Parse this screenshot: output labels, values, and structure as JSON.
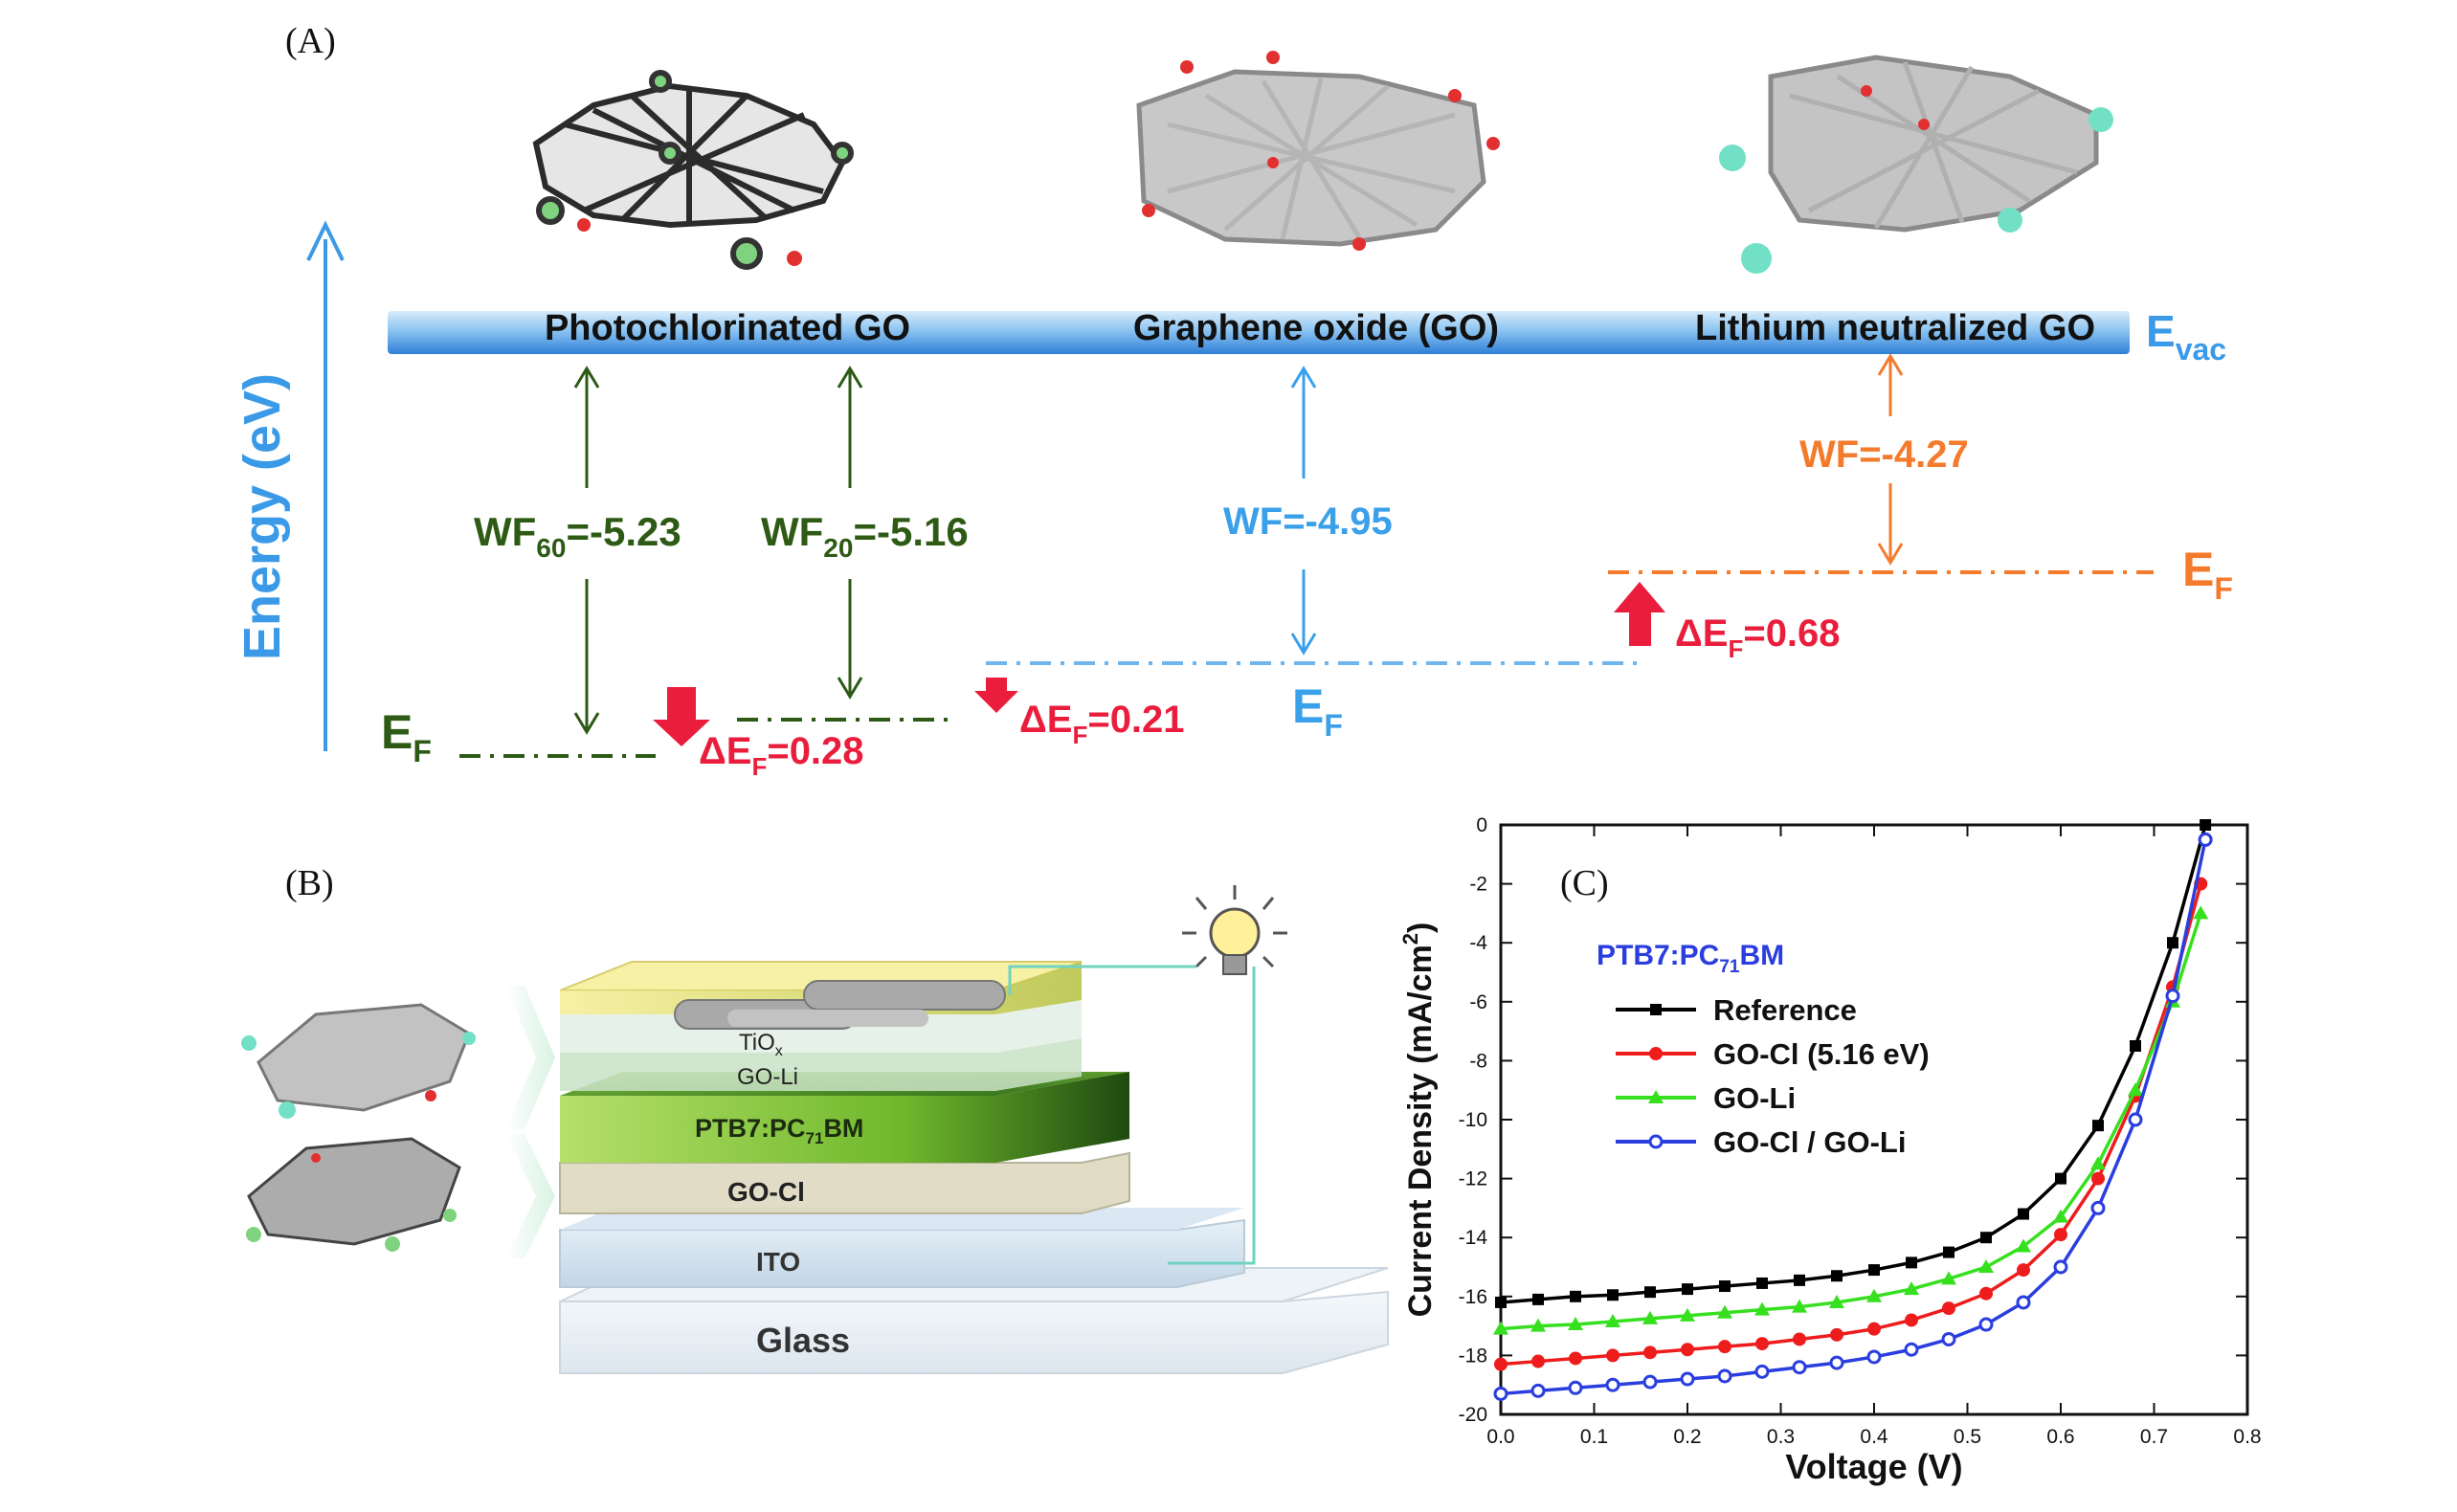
{
  "panel_labels": {
    "a": "(A)",
    "b": "(B)",
    "c": "(C)"
  },
  "energy_diagram": {
    "axis_label": "Energy (eV)",
    "vacuum_label": "E",
    "vacuum_sub": "vac",
    "materials": [
      "Photochlorinated GO",
      "Graphene oxide (GO)",
      "Lithium neutralized GO"
    ],
    "wf60": {
      "prefix": "WF",
      "sub": "60",
      "value": "=-5.23"
    },
    "wf20": {
      "prefix": "WF",
      "sub": "20",
      "value": "=-5.16"
    },
    "wf_go": "WF=-4.95",
    "wf_li": "WF=-4.27",
    "fermi_main": "E",
    "fermi_sub": "F",
    "delta_028": {
      "prefix": "ΔE",
      "sub": "F",
      "value": "=0.28"
    },
    "delta_021": {
      "prefix": "ΔE",
      "sub": "F",
      "value": "=0.21"
    },
    "delta_068": {
      "prefix": "ΔE",
      "sub": "F",
      "value": "=0.68"
    },
    "colors": {
      "cl": "#2d5a14",
      "go": "#3aa0ea",
      "li": "#f47a2c",
      "delta": "#ea1e3c"
    }
  },
  "device": {
    "layers": [
      "TiO",
      "GO-Li",
      "PTB7:PC",
      "GO-Cl",
      "ITO",
      "Glass"
    ],
    "tio_sub": "x",
    "ptb7_sub": "71",
    "ptb7_suffix": "BM"
  },
  "chart_data": {
    "type": "line",
    "title": "",
    "inset_title": {
      "prefix": "PTB7:PC",
      "sub": "71",
      "suffix": "BM"
    },
    "xlabel": "Voltage (V)",
    "ylabel": "Current Density (mA/cm",
    "ylabel_sup": "2",
    "ylabel_suffix": ")",
    "xlim": [
      0.0,
      0.8
    ],
    "ylim": [
      -20,
      0
    ],
    "xticks": [
      "0.0",
      "0.1",
      "0.2",
      "0.3",
      "0.4",
      "0.5",
      "0.6",
      "0.7",
      "0.8"
    ],
    "yticks": [
      "0",
      "-2",
      "-4",
      "-6",
      "-8",
      "-10",
      "-12",
      "-14",
      "-16",
      "-18",
      "-20"
    ],
    "legend_position": "upper-left",
    "series": [
      {
        "name": "Reference",
        "color": "#000000",
        "marker": "square",
        "x": [
          0.0,
          0.04,
          0.08,
          0.12,
          0.16,
          0.2,
          0.24,
          0.28,
          0.32,
          0.36,
          0.4,
          0.44,
          0.48,
          0.52,
          0.56,
          0.6,
          0.64,
          0.68,
          0.72,
          0.755
        ],
        "y": [
          -16.2,
          -16.1,
          -16.0,
          -15.95,
          -15.85,
          -15.75,
          -15.65,
          -15.55,
          -15.45,
          -15.3,
          -15.1,
          -14.85,
          -14.5,
          -14.0,
          -13.2,
          -12.0,
          -10.2,
          -7.5,
          -4.0,
          0.0
        ]
      },
      {
        "name": "GO-Cl (5.16 eV)",
        "color": "#ee1c1c",
        "marker": "circle",
        "x": [
          0.0,
          0.04,
          0.08,
          0.12,
          0.16,
          0.2,
          0.24,
          0.28,
          0.32,
          0.36,
          0.4,
          0.44,
          0.48,
          0.52,
          0.56,
          0.6,
          0.64,
          0.68,
          0.72,
          0.75
        ],
        "y": [
          -18.3,
          -18.2,
          -18.1,
          -18.0,
          -17.9,
          -17.8,
          -17.7,
          -17.6,
          -17.45,
          -17.3,
          -17.1,
          -16.8,
          -16.4,
          -15.9,
          -15.1,
          -13.9,
          -12.0,
          -9.2,
          -5.5,
          -2.0
        ]
      },
      {
        "name": "GO-Li",
        "color": "#36e01e",
        "marker": "triangle",
        "x": [
          0.0,
          0.04,
          0.08,
          0.12,
          0.16,
          0.2,
          0.24,
          0.28,
          0.32,
          0.36,
          0.4,
          0.44,
          0.48,
          0.52,
          0.56,
          0.6,
          0.64,
          0.68,
          0.72,
          0.75
        ],
        "y": [
          -17.1,
          -17.0,
          -16.95,
          -16.85,
          -16.75,
          -16.65,
          -16.55,
          -16.45,
          -16.35,
          -16.2,
          -16.0,
          -15.75,
          -15.4,
          -15.0,
          -14.3,
          -13.3,
          -11.5,
          -9.0,
          -6.0,
          -3.0
        ]
      },
      {
        "name": "GO-Cl / GO-Li",
        "color": "#2a3ee0",
        "marker": "circle",
        "x": [
          0.0,
          0.04,
          0.08,
          0.12,
          0.16,
          0.2,
          0.24,
          0.28,
          0.32,
          0.36,
          0.4,
          0.44,
          0.48,
          0.52,
          0.56,
          0.6,
          0.64,
          0.68,
          0.72,
          0.755
        ],
        "y": [
          -19.3,
          -19.2,
          -19.1,
          -19.0,
          -18.9,
          -18.8,
          -18.7,
          -18.55,
          -18.4,
          -18.25,
          -18.05,
          -17.8,
          -17.45,
          -16.95,
          -16.2,
          -15.0,
          -13.0,
          -10.0,
          -5.8,
          -0.5
        ]
      }
    ]
  }
}
